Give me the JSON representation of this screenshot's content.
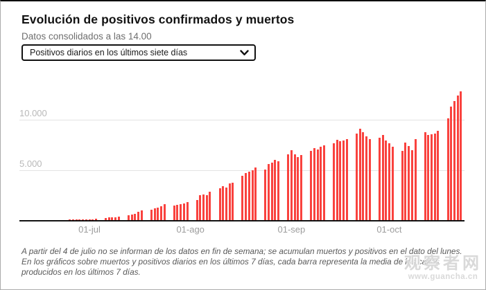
{
  "header": {
    "title": "Evolución de positivos confirmados y muertos",
    "subtitle": "Datos consolidados a las 14.00"
  },
  "metric_select": {
    "selected": "Positivos diarios en los últimos siete días",
    "icon": "chevron-down-icon"
  },
  "footnote": "A partir del 4 de julio no se informan de los datos en fin de semana; se acumulan muertos y positivos en el dato del lunes. En los gráficos sobre muertos y positivos diarios en los últimos 7 días, cada barra representa la media de los casos producidos en los últimos 7 días.",
  "watermark": {
    "text": "观察者网",
    "url": "www.guancha.cn"
  },
  "colors": {
    "bar": "#f9423e",
    "axis": "#111111",
    "grid": "#e3e3e3"
  },
  "chart_data": {
    "type": "bar",
    "title": "Positivos diarios en los últimos siete días",
    "xlabel": "",
    "ylabel": "",
    "ylim": [
      0,
      13000
    ],
    "grid": true,
    "legend": "none",
    "y_ticks": [
      {
        "label": "5.000",
        "value": 5000
      },
      {
        "label": "10.000",
        "value": 10000
      }
    ],
    "x_ticks": [
      {
        "label": "01-jul",
        "date": "2020-07-01"
      },
      {
        "label": "01-ago",
        "date": "2020-08-01"
      },
      {
        "label": "01-sep",
        "date": "2020-09-01"
      },
      {
        "label": "01-oct",
        "date": "2020-10-01"
      }
    ],
    "series": [
      {
        "name": "Positivos diarios en los últimos siete días",
        "points": [
          [
            "2020-06-20",
            140
          ],
          [
            "2020-06-21",
            150
          ],
          [
            "2020-06-22",
            155
          ],
          [
            "2020-06-23",
            160
          ],
          [
            "2020-06-24",
            160
          ],
          [
            "2020-06-25",
            180
          ],
          [
            "2020-06-26",
            180
          ],
          [
            "2020-06-27",
            185
          ],
          [
            "2020-06-28",
            190
          ],
          [
            "2020-06-29",
            200
          ],
          [
            "2020-06-30",
            210
          ],
          [
            "2020-07-01",
            225
          ],
          [
            "2020-07-02",
            235
          ],
          [
            "2020-07-03",
            250
          ],
          [
            "2020-07-06",
            350
          ],
          [
            "2020-07-07",
            380
          ],
          [
            "2020-07-08",
            400
          ],
          [
            "2020-07-09",
            430
          ],
          [
            "2020-07-10",
            460
          ],
          [
            "2020-07-13",
            610
          ],
          [
            "2020-07-14",
            680
          ],
          [
            "2020-07-15",
            760
          ],
          [
            "2020-07-16",
            930
          ],
          [
            "2020-07-17",
            1070
          ],
          [
            "2020-07-20",
            1160
          ],
          [
            "2020-07-21",
            1290
          ],
          [
            "2020-07-22",
            1380
          ],
          [
            "2020-07-23",
            1520
          ],
          [
            "2020-07-24",
            1680
          ],
          [
            "2020-07-27",
            1560
          ],
          [
            "2020-07-28",
            1620
          ],
          [
            "2020-07-29",
            1700
          ],
          [
            "2020-07-30",
            1790
          ],
          [
            "2020-07-31",
            1870
          ],
          [
            "2020-08-03",
            2100
          ],
          [
            "2020-08-04",
            2550
          ],
          [
            "2020-08-05",
            2650
          ],
          [
            "2020-08-06",
            2600
          ],
          [
            "2020-08-07",
            2950
          ],
          [
            "2020-08-10",
            3260
          ],
          [
            "2020-08-11",
            3450
          ],
          [
            "2020-08-12",
            3350
          ],
          [
            "2020-08-13",
            3720
          ],
          [
            "2020-08-14",
            3830
          ],
          [
            "2020-08-17",
            4510
          ],
          [
            "2020-08-18",
            4740
          ],
          [
            "2020-08-19",
            4900
          ],
          [
            "2020-08-20",
            5030
          ],
          [
            "2020-08-21",
            5260
          ],
          [
            "2020-08-24",
            5080
          ],
          [
            "2020-08-25",
            5640
          ],
          [
            "2020-08-26",
            5760
          ],
          [
            "2020-08-27",
            6030
          ],
          [
            "2020-08-28",
            5870
          ],
          [
            "2020-08-31",
            6600
          ],
          [
            "2020-09-01",
            7000
          ],
          [
            "2020-09-02",
            6550
          ],
          [
            "2020-09-03",
            6320
          ],
          [
            "2020-09-04",
            6480
          ],
          [
            "2020-09-07",
            6890
          ],
          [
            "2020-09-08",
            7160
          ],
          [
            "2020-09-09",
            7050
          ],
          [
            "2020-09-10",
            7300
          ],
          [
            "2020-09-11",
            7460
          ],
          [
            "2020-09-14",
            7680
          ],
          [
            "2020-09-15",
            7980
          ],
          [
            "2020-09-16",
            7840
          ],
          [
            "2020-09-17",
            7910
          ],
          [
            "2020-09-18",
            8070
          ],
          [
            "2020-09-21",
            8590
          ],
          [
            "2020-09-22",
            9110
          ],
          [
            "2020-09-23",
            8750
          ],
          [
            "2020-09-24",
            8360
          ],
          [
            "2020-09-25",
            8090
          ],
          [
            "2020-09-28",
            8200
          ],
          [
            "2020-09-29",
            8480
          ],
          [
            "2020-09-30",
            7950
          ],
          [
            "2020-10-01",
            7680
          ],
          [
            "2020-10-02",
            7340
          ],
          [
            "2020-10-05",
            6890
          ],
          [
            "2020-10-06",
            7730
          ],
          [
            "2020-10-07",
            7410
          ],
          [
            "2020-10-08",
            7000
          ],
          [
            "2020-10-09",
            8070
          ],
          [
            "2020-10-12",
            8770
          ],
          [
            "2020-10-13",
            8480
          ],
          [
            "2020-10-14",
            8520
          ],
          [
            "2020-10-15",
            8640
          ],
          [
            "2020-10-16",
            8890
          ],
          [
            "2020-10-19",
            10110
          ],
          [
            "2020-10-20",
            11240
          ],
          [
            "2020-10-21",
            11830
          ],
          [
            "2020-10-22",
            12330
          ],
          [
            "2020-10-23",
            12720
          ]
        ]
      }
    ]
  }
}
